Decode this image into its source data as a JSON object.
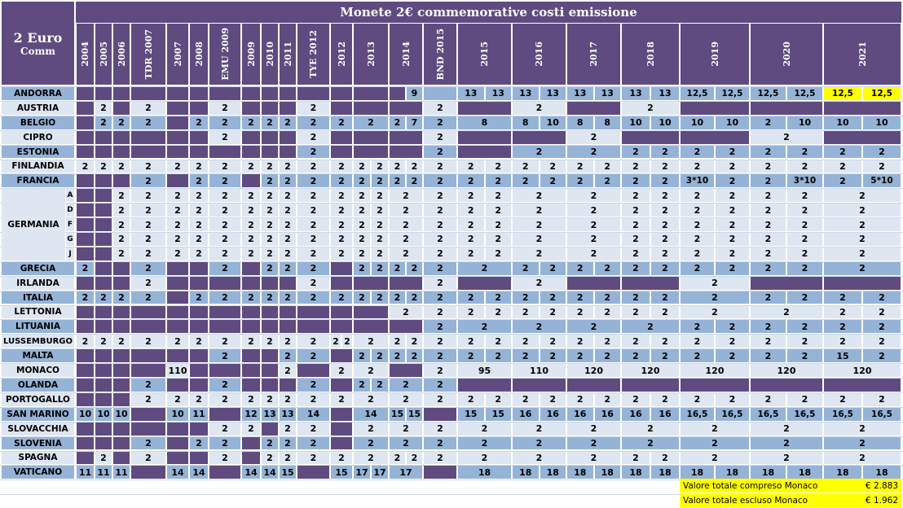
{
  "title": "Monete 2€ commemorative costi emissione",
  "corner_line1": "2 Euro",
  "corner_line2": "Comm",
  "columns": [
    "2004",
    "2005",
    "2006",
    "TDR 2007",
    "2007",
    "2008",
    "EMU 2009",
    "2009",
    "2010",
    "2011",
    "TYE 2012",
    "2012",
    "2013",
    "2014",
    "BND 2015",
    "2015",
    "2016",
    "2017",
    "2018",
    "2019",
    "2020",
    "2021"
  ],
  "germany_sub": [
    "A",
    "D",
    "F",
    "G",
    "J"
  ],
  "rows": [
    {
      "label": "ANDORRA",
      "bg": "b",
      "cells": [
        "P",
        "P",
        "P",
        "P",
        "P",
        "P",
        "P",
        "P",
        "P",
        "P",
        "P",
        "P",
        "P",
        "P|9",
        "",
        "13|13",
        "13|13",
        "13|13",
        "13|13",
        "12,5|12,5",
        "12,5|12,5",
        "Y:12,5|Y:12,5"
      ]
    },
    {
      "label": "AUSTRIA",
      "bg": "w",
      "cells": [
        "P",
        "2",
        "P",
        "2",
        "P",
        "P",
        "2",
        "P",
        "P",
        "P",
        "2",
        "P",
        "P",
        "P",
        "2",
        "P",
        "2",
        "P",
        "2",
        "P",
        "P",
        "P"
      ]
    },
    {
      "label": "BELGIO",
      "bg": "b",
      "cells": [
        "P",
        "2",
        "2",
        "2",
        "P",
        "2",
        "2",
        "2",
        "2",
        "2",
        "2",
        "2",
        "2",
        "2|7",
        "2",
        "8",
        "8|10",
        "8|8",
        "10|10",
        "10|10",
        "2|10",
        "10|10"
      ]
    },
    {
      "label": "CIPRO",
      "bg": "w",
      "cells": [
        "P",
        "P",
        "P",
        "P",
        "P",
        "P",
        "2",
        "P",
        "P",
        "P",
        "2",
        "P",
        "P",
        "P",
        "2",
        "P",
        "P",
        "2",
        "P",
        "P",
        "2",
        "P"
      ]
    },
    {
      "label": "ESTONIA",
      "bg": "b",
      "cells": [
        "P",
        "P",
        "P",
        "P",
        "P",
        "P",
        "P",
        "P",
        "P",
        "P",
        "2",
        "P",
        "P",
        "P",
        "2",
        "P",
        "2",
        "2",
        "2|2",
        "2|2",
        "2|2",
        "2|2"
      ]
    },
    {
      "label": "FINLANDIA",
      "bg": "w",
      "cells": [
        "2",
        "2",
        "2",
        "2",
        "2",
        "2",
        "2",
        "2",
        "2",
        "2",
        "2",
        "2",
        "2|2",
        "2|2",
        "2",
        "2|2",
        "2|2",
        "2|2",
        "2|2",
        "2|2",
        "2|2",
        "2|2"
      ]
    },
    {
      "label": "FRANCIA",
      "bg": "b",
      "cells": [
        "P",
        "P",
        "P",
        "2",
        "P",
        "2",
        "2",
        "P",
        "2",
        "2",
        "2",
        "2",
        "2|2",
        "2|2",
        "2",
        "2|2",
        "2|2",
        "2|2",
        "2|2",
        "3*10|2",
        "2|3*10",
        "2|5*10"
      ]
    },
    {
      "label": "G",
      "bg": "w",
      "cells": [
        "P",
        "P",
        "2",
        "2",
        "2",
        "2",
        "2",
        "2",
        "2",
        "2",
        "2",
        "2",
        "2|2",
        "2",
        "2",
        "2|2",
        "2",
        "2",
        "2|2",
        "2|2",
        "2|2",
        "2"
      ]
    },
    {
      "label": "G",
      "bg": "w",
      "cells": [
        "P",
        "P",
        "2",
        "2",
        "2",
        "2",
        "2",
        "2",
        "2",
        "2",
        "2",
        "2",
        "2|2",
        "2",
        "2",
        "2|2",
        "2",
        "2",
        "2|2",
        "2|2",
        "2|2",
        "2"
      ]
    },
    {
      "label": "G",
      "bg": "w",
      "cells": [
        "P",
        "P",
        "2",
        "2",
        "2",
        "2",
        "2",
        "2",
        "2",
        "2",
        "2",
        "2",
        "2|2",
        "2",
        "2",
        "2|2",
        "2",
        "2",
        "2|2",
        "2|2",
        "2|2",
        "2"
      ]
    },
    {
      "label": "G",
      "bg": "w",
      "cells": [
        "P",
        "P",
        "2",
        "2",
        "2",
        "2",
        "2",
        "2",
        "2",
        "2",
        "2",
        "2",
        "2|2",
        "2",
        "2",
        "2|2",
        "2",
        "2",
        "2|2",
        "2|2",
        "2|2",
        "2"
      ]
    },
    {
      "label": "G",
      "bg": "w",
      "cells": [
        "P",
        "P",
        "2",
        "2",
        "2",
        "2",
        "2",
        "2",
        "2",
        "2",
        "2",
        "2",
        "2|2",
        "2",
        "2",
        "2|2",
        "2",
        "2",
        "2|2",
        "2|2",
        "2|2",
        "2"
      ]
    },
    {
      "label": "GRECIA",
      "bg": "b",
      "cells": [
        "2",
        "P",
        "P",
        "2",
        "P",
        "P",
        "2",
        "P",
        "2",
        "2",
        "2",
        "P",
        "2|2",
        "2|2",
        "2",
        "2",
        "2|2",
        "2|2",
        "2|2",
        "2|2",
        "2|2",
        "2"
      ]
    },
    {
      "label": "IRLANDA",
      "bg": "w",
      "cells": [
        "P",
        "P",
        "P",
        "2",
        "P",
        "P",
        "P",
        "P",
        "P",
        "P",
        "2",
        "P",
        "P",
        "P",
        "2",
        "P",
        "2",
        "P",
        "P",
        "2",
        "P",
        "P"
      ]
    },
    {
      "label": "ITALIA",
      "bg": "b",
      "cells": [
        "2",
        "2",
        "2",
        "2",
        "P",
        "2",
        "2",
        "2",
        "2",
        "2",
        "2",
        "2",
        "2|2",
        "2|2",
        "2",
        "2|2",
        "2|2",
        "2|2",
        "2|2",
        "2",
        "2|2",
        "2|2"
      ]
    },
    {
      "label": "LETTONIA",
      "bg": "w",
      "cells": [
        "P",
        "P",
        "P",
        "P",
        "P",
        "P",
        "P",
        "P",
        "P",
        "P",
        "P",
        "P",
        "P",
        "2",
        "2",
        "2|2",
        "2|2",
        "2|2",
        "2|2",
        "2",
        "2",
        "2|2"
      ]
    },
    {
      "label": "LITUANIA",
      "bg": "b",
      "cells": [
        "P",
        "P",
        "P",
        "P",
        "P",
        "P",
        "P",
        "P",
        "P",
        "P",
        "P",
        "P",
        "P",
        "P",
        "2",
        "2",
        "2",
        "2",
        "2",
        "2|2",
        "2|2",
        "2|2"
      ]
    },
    {
      "label": "LUSSEMBURGO",
      "bg": "w",
      "cells": [
        "2",
        "2",
        "2",
        "2",
        "2",
        "2",
        "2",
        "2",
        "2",
        "2",
        "2",
        "2|2",
        "2",
        "2|2",
        "2",
        "2|2",
        "2|2",
        "2|2",
        "2|2",
        "2|2",
        "2|2",
        "2|2"
      ]
    },
    {
      "label": "MALTA",
      "bg": "b",
      "cells": [
        "P",
        "P",
        "P",
        "P",
        "P",
        "P",
        "2",
        "P",
        "P",
        "2",
        "2",
        "P",
        "2|2",
        "2|2",
        "2",
        "2|2",
        "2|2",
        "2|2",
        "2|2",
        "2|2",
        "2|2",
        "15|2"
      ]
    },
    {
      "label": "MONACO",
      "bg": "w",
      "cells": [
        "P",
        "P",
        "P",
        "P",
        "110",
        "P",
        "P",
        "P",
        "P",
        "2",
        "P",
        "2",
        "2",
        "P",
        "2",
        "95",
        "110",
        "120",
        "120",
        "120",
        "120",
        "120"
      ]
    },
    {
      "label": "OLANDA",
      "bg": "b",
      "cells": [
        "P",
        "P",
        "P",
        "2",
        "P",
        "P",
        "2",
        "P",
        "P",
        "P",
        "2",
        "P",
        "2|2",
        "2",
        "2",
        "P",
        "P",
        "P",
        "P",
        "P",
        "P",
        "P"
      ]
    },
    {
      "label": "PORTOGALLO",
      "bg": "w",
      "cells": [
        "P",
        "P",
        "P",
        "2",
        "2",
        "2",
        "2",
        "2",
        "2",
        "2",
        "2",
        "2",
        "2",
        "2",
        "2",
        "2|2",
        "2|2",
        "2|2",
        "2|2",
        "2|2",
        "2|2",
        "2|2"
      ]
    },
    {
      "label": "SAN MARINO",
      "bg": "b",
      "cells": [
        "10",
        "10",
        "10",
        "P",
        "10",
        "11",
        "P",
        "12",
        "13",
        "13",
        "14",
        "P",
        "14",
        "15|15",
        "P",
        "15|15",
        "16|16",
        "16|16",
        "16|16",
        "16,5|16,5",
        "16,5|16,5",
        "16,5|16,5"
      ]
    },
    {
      "label": "SLOVACCHIA",
      "bg": "w",
      "cells": [
        "P",
        "P",
        "P",
        "P",
        "P",
        "P",
        "2",
        "2",
        "P",
        "2",
        "2",
        "P",
        "2",
        "2",
        "2",
        "2",
        "2",
        "2",
        "2",
        "2",
        "2",
        "2"
      ]
    },
    {
      "label": "SLOVENIA",
      "bg": "b",
      "cells": [
        "P",
        "P",
        "P",
        "2",
        "P",
        "2",
        "2",
        "P",
        "2",
        "2",
        "2",
        "P",
        "2",
        "2",
        "2",
        "2",
        "2",
        "2",
        "2",
        "2",
        "2",
        "2"
      ]
    },
    {
      "label": "SPAGNA",
      "bg": "w",
      "cells": [
        "P",
        "2",
        "P",
        "2",
        "P",
        "P",
        "2",
        "P",
        "2",
        "2",
        "2",
        "2",
        "2",
        "2|2",
        "2",
        "2",
        "2",
        "2",
        "2|2",
        "2",
        "2",
        "2"
      ]
    },
    {
      "label": "VATICANO",
      "bg": "b",
      "cells": [
        "11",
        "11",
        "11",
        "P",
        "14",
        "14",
        "P",
        "14",
        "14",
        "15",
        "P",
        "15",
        "17|17",
        "17",
        "P",
        "18",
        "18|18",
        "18|18",
        "18|18",
        "18|18",
        "18|18",
        "18|18"
      ]
    }
  ],
  "germany_label": "GERMANIA",
  "totals": [
    {
      "label": "Valore totale compreso Monaco",
      "value": "€ 2.883"
    },
    {
      "label": "Valore totale escluso Monaco",
      "value": "€ 1.962"
    }
  ],
  "colors": {
    "purple": "#5f4b80",
    "blue": "#95b3d7",
    "light": "#dde6f1",
    "yellow": "#ffff00"
  }
}
